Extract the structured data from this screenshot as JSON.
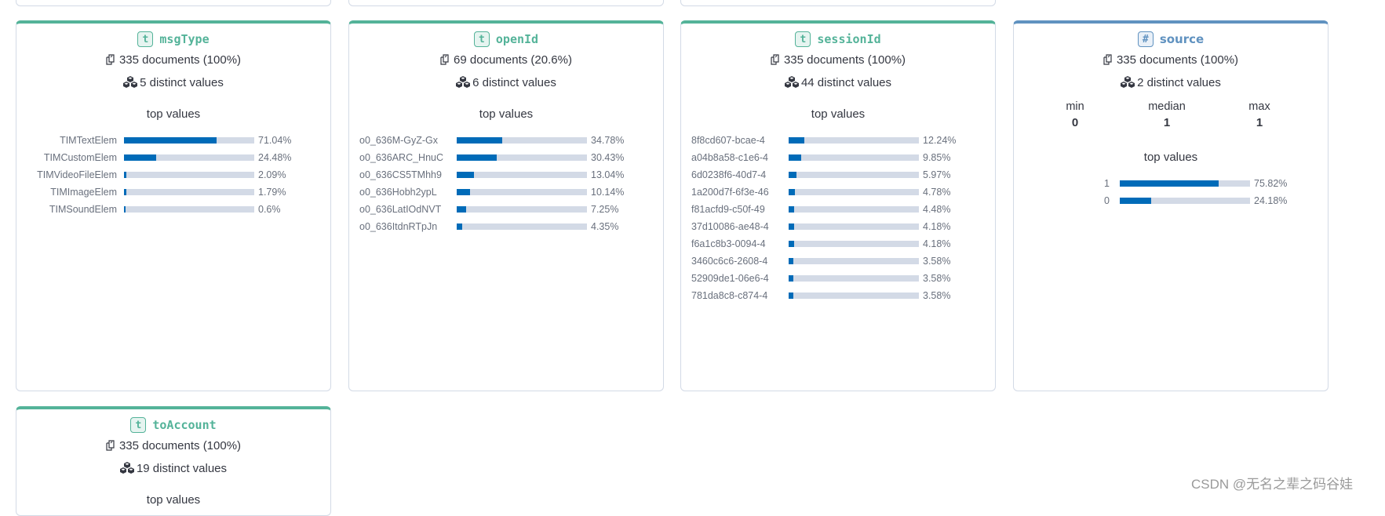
{
  "colors": {
    "text_field": "#54b399",
    "number_field": "#6092c0",
    "bar_fill": "#006bb8",
    "bar_track": "#d3dae6"
  },
  "section_label": "top values",
  "cards": [
    {
      "type_badge": "t",
      "field": "msgType",
      "documents": "335 documents (100%)",
      "distinct": "5 distinct values",
      "top_values_label": "top values",
      "values": [
        {
          "label": "TIMTextElem",
          "pct": "71.04%",
          "frac": 0.7104
        },
        {
          "label": "TIMCustomElem",
          "pct": "24.48%",
          "frac": 0.2448
        },
        {
          "label": "TIMVideoFileElem",
          "pct": "2.09%",
          "frac": 0.0209
        },
        {
          "label": "TIMImageElem",
          "pct": "1.79%",
          "frac": 0.0179
        },
        {
          "label": "TIMSoundElem",
          "pct": "0.6%",
          "frac": 0.006
        }
      ]
    },
    {
      "type_badge": "t",
      "field": "openId",
      "documents": "69 documents (20.6%)",
      "distinct": "6 distinct values",
      "top_values_label": "top values",
      "values": [
        {
          "label": "o0_636M-GyZ-Gx",
          "pct": "34.78%",
          "frac": 0.3478
        },
        {
          "label": "o0_636ARC_HnuC",
          "pct": "30.43%",
          "frac": 0.3043
        },
        {
          "label": "o0_636CS5TMhh9",
          "pct": "13.04%",
          "frac": 0.1304
        },
        {
          "label": "o0_636Hobh2ypL",
          "pct": "10.14%",
          "frac": 0.1014
        },
        {
          "label": "o0_636LatIOdNVT",
          "pct": "7.25%",
          "frac": 0.0725
        },
        {
          "label": "o0_636ItdnRTpJn",
          "pct": "4.35%",
          "frac": 0.0435
        }
      ]
    },
    {
      "type_badge": "t",
      "field": "sessionId",
      "documents": "335 documents (100%)",
      "distinct": "44 distinct values",
      "top_values_label": "top values",
      "values": [
        {
          "label": "8f8cd607-bcae-4",
          "pct": "12.24%",
          "frac": 0.1224
        },
        {
          "label": "a04b8a58-c1e6-4",
          "pct": "9.85%",
          "frac": 0.0985
        },
        {
          "label": "6d0238f6-40d7-4",
          "pct": "5.97%",
          "frac": 0.0597
        },
        {
          "label": "1a200d7f-6f3e-46",
          "pct": "4.78%",
          "frac": 0.0478
        },
        {
          "label": "f81acfd9-c50f-49",
          "pct": "4.48%",
          "frac": 0.0448
        },
        {
          "label": "37d10086-ae48-4",
          "pct": "4.18%",
          "frac": 0.0418
        },
        {
          "label": "f6a1c8b3-0094-4",
          "pct": "4.18%",
          "frac": 0.0418
        },
        {
          "label": "3460c6c6-2608-4",
          "pct": "3.58%",
          "frac": 0.0358
        },
        {
          "label": "52909de1-06e6-4",
          "pct": "3.58%",
          "frac": 0.0358
        },
        {
          "label": "781da8c8-c874-4",
          "pct": "3.58%",
          "frac": 0.0358
        }
      ]
    },
    {
      "type_badge": "#",
      "field": "source",
      "documents": "335 documents (100%)",
      "distinct": "2 distinct values",
      "stats": {
        "min_label": "min",
        "min": "0",
        "median_label": "median",
        "median": "1",
        "max_label": "max",
        "max": "1"
      },
      "top_values_label": "top values",
      "values": [
        {
          "label": "1",
          "pct": "75.82%",
          "frac": 0.7582
        },
        {
          "label": "0",
          "pct": "24.18%",
          "frac": 0.2418
        }
      ]
    },
    {
      "type_badge": "t",
      "field": "toAccount",
      "documents": "335 documents (100%)",
      "distinct": "19 distinct values",
      "top_values_label": "top values"
    }
  ],
  "watermark": "CSDN @无名之辈之码谷娃"
}
